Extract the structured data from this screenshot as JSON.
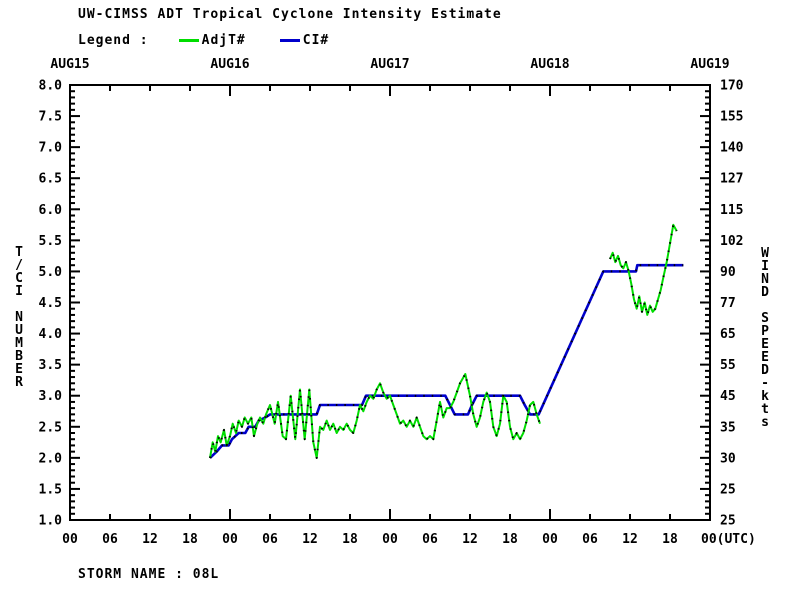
{
  "header": {
    "title": "UW-CIMSS ADT Tropical Cyclone Intensity Estimate",
    "legend_label": "Legend :",
    "adjt_label": "AdjT#",
    "ci_label": "CI#"
  },
  "footer": {
    "storm_name": "STORM NAME : 08L"
  },
  "colors": {
    "adjt_line": "#00DD00",
    "ci_line": "#0000CC",
    "axis": "#000000",
    "marker_dots": "#000000",
    "background": "#FFFFFF"
  },
  "chart_data": {
    "type": "line",
    "title": "UW-CIMSS ADT Tropical Cyclone Intensity Estimate",
    "x_axis": {
      "date_labels": [
        "AUG15",
        "AUG16",
        "AUG17",
        "AUG18",
        "AUG19"
      ],
      "hour_label_cycle": [
        "00",
        "06",
        "12",
        "18"
      ],
      "last_label": "00(UTC)",
      "hours_total": 96,
      "tick_interval_hours": 6
    },
    "y_left": {
      "label": "T/CI NUMBER",
      "min": 1.0,
      "max": 8.0,
      "major_step": 0.5,
      "minor_step": 0.1,
      "tick_labels_top_to_bottom": [
        "8.0",
        "7.5",
        "7.0",
        "6.5",
        "6.0",
        "5.5",
        "5.0",
        "4.5",
        "4.0",
        "3.5",
        "3.0",
        "2.5",
        "2.0",
        "1.5",
        "1.0"
      ]
    },
    "y_right": {
      "label": "WIND SPEED-kts",
      "tick_labels_top_to_bottom": [
        "170",
        "155",
        "140",
        "127",
        "115",
        "102",
        "90",
        "77",
        "65",
        "55",
        "45",
        "35",
        "30",
        "25",
        "25"
      ]
    },
    "grid": false,
    "legend_position": "top-left",
    "series": [
      {
        "name": "CI#",
        "color_key": "ci_line",
        "segments": [
          [
            [
              21.0,
              2.0
            ],
            [
              21.5,
              2.05
            ],
            [
              22.0,
              2.1
            ],
            [
              22.8,
              2.2
            ],
            [
              23.8,
              2.2
            ],
            [
              24.3,
              2.3
            ],
            [
              25.3,
              2.4
            ],
            [
              26.3,
              2.4
            ],
            [
              26.8,
              2.5
            ],
            [
              27.8,
              2.5
            ],
            [
              28.3,
              2.6
            ],
            [
              29.3,
              2.65
            ],
            [
              30.0,
              2.7
            ],
            [
              37.0,
              2.7
            ],
            [
              37.5,
              2.85
            ],
            [
              43.8,
              2.85
            ],
            [
              44.4,
              3.0
            ],
            [
              56.3,
              3.0
            ],
            [
              57.0,
              2.85
            ],
            [
              57.7,
              2.7
            ],
            [
              59.7,
              2.7
            ],
            [
              60.3,
              2.85
            ],
            [
              61.0,
              3.0
            ],
            [
              67.5,
              3.0
            ],
            [
              68.2,
              2.85
            ],
            [
              69.0,
              2.7
            ],
            [
              70.3,
              2.7
            ],
            [
              80.0,
              5.0
            ],
            [
              84.9,
              5.0
            ],
            [
              85.1,
              5.1
            ],
            [
              92.0,
              5.1
            ]
          ]
        ]
      },
      {
        "name": "AdjT#",
        "color_key": "adjt_line",
        "segments": [
          [
            [
              21.0,
              2.0
            ],
            [
              21.4,
              2.25
            ],
            [
              21.8,
              2.1
            ],
            [
              22.2,
              2.35
            ],
            [
              22.6,
              2.25
            ],
            [
              23.1,
              2.45
            ],
            [
              23.5,
              2.2
            ],
            [
              24.0,
              2.35
            ],
            [
              24.4,
              2.55
            ],
            [
              24.9,
              2.4
            ],
            [
              25.3,
              2.6
            ],
            [
              25.8,
              2.5
            ],
            [
              26.2,
              2.65
            ],
            [
              26.7,
              2.55
            ],
            [
              27.2,
              2.65
            ],
            [
              27.6,
              2.35
            ],
            [
              28.1,
              2.55
            ],
            [
              28.5,
              2.65
            ],
            [
              29.0,
              2.55
            ],
            [
              29.4,
              2.7
            ],
            [
              30.0,
              2.85
            ],
            [
              30.7,
              2.55
            ],
            [
              31.2,
              2.9
            ],
            [
              31.9,
              2.35
            ],
            [
              32.4,
              2.3
            ],
            [
              33.1,
              3.0
            ],
            [
              33.8,
              2.3
            ],
            [
              34.5,
              3.1
            ],
            [
              35.2,
              2.3
            ],
            [
              35.9,
              3.1
            ],
            [
              36.5,
              2.25
            ],
            [
              37.0,
              2.0
            ],
            [
              37.5,
              2.5
            ],
            [
              38.0,
              2.45
            ],
            [
              38.5,
              2.6
            ],
            [
              39.0,
              2.45
            ],
            [
              39.5,
              2.55
            ],
            [
              40.0,
              2.4
            ],
            [
              40.5,
              2.5
            ],
            [
              41.0,
              2.45
            ],
            [
              41.5,
              2.55
            ],
            [
              42.0,
              2.45
            ],
            [
              42.5,
              2.4
            ],
            [
              43.0,
              2.6
            ],
            [
              43.5,
              2.85
            ],
            [
              44.0,
              2.75
            ],
            [
              44.5,
              2.9
            ],
            [
              45.0,
              3.0
            ],
            [
              45.5,
              2.95
            ],
            [
              46.0,
              3.1
            ],
            [
              46.5,
              3.2
            ],
            [
              47.0,
              3.05
            ],
            [
              47.5,
              2.95
            ],
            [
              48.0,
              3.0
            ],
            [
              48.5,
              2.85
            ],
            [
              49.0,
              2.7
            ],
            [
              49.5,
              2.55
            ],
            [
              50.0,
              2.6
            ],
            [
              50.5,
              2.5
            ],
            [
              51.0,
              2.6
            ],
            [
              51.5,
              2.5
            ],
            [
              52.0,
              2.65
            ],
            [
              52.5,
              2.5
            ],
            [
              53.0,
              2.35
            ],
            [
              53.5,
              2.3
            ],
            [
              54.0,
              2.35
            ],
            [
              54.5,
              2.3
            ],
            [
              55.0,
              2.6
            ],
            [
              55.5,
              2.9
            ],
            [
              56.0,
              2.65
            ],
            [
              56.5,
              2.8
            ],
            [
              57.0,
              2.8
            ],
            [
              57.5,
              2.9
            ],
            [
              58.0,
              3.05
            ],
            [
              58.5,
              3.2
            ],
            [
              59.3,
              3.35
            ],
            [
              60.0,
              3.0
            ],
            [
              60.5,
              2.7
            ],
            [
              61.0,
              2.5
            ],
            [
              61.5,
              2.65
            ],
            [
              62.0,
              2.9
            ],
            [
              62.5,
              3.05
            ],
            [
              63.0,
              2.9
            ],
            [
              63.5,
              2.5
            ],
            [
              64.0,
              2.35
            ],
            [
              64.5,
              2.55
            ],
            [
              65.0,
              3.0
            ],
            [
              65.5,
              2.9
            ],
            [
              66.0,
              2.5
            ],
            [
              66.5,
              2.3
            ],
            [
              67.0,
              2.4
            ],
            [
              67.5,
              2.3
            ],
            [
              68.0,
              2.4
            ],
            [
              68.5,
              2.6
            ],
            [
              69.0,
              2.85
            ],
            [
              69.5,
              2.9
            ],
            [
              70.0,
              2.7
            ],
            [
              70.5,
              2.55
            ]
          ],
          [
            [
              81.0,
              5.2
            ],
            [
              81.4,
              5.3
            ],
            [
              81.8,
              5.15
            ],
            [
              82.2,
              5.25
            ],
            [
              82.6,
              5.1
            ],
            [
              83.0,
              5.05
            ],
            [
              83.4,
              5.15
            ],
            [
              83.8,
              5.0
            ],
            [
              84.2,
              4.8
            ],
            [
              84.6,
              4.55
            ],
            [
              85.0,
              4.4
            ],
            [
              85.4,
              4.6
            ],
            [
              85.8,
              4.35
            ],
            [
              86.2,
              4.5
            ],
            [
              86.6,
              4.3
            ],
            [
              87.0,
              4.45
            ],
            [
              87.4,
              4.35
            ],
            [
              87.8,
              4.4
            ],
            [
              88.2,
              4.55
            ],
            [
              88.6,
              4.7
            ],
            [
              89.0,
              4.9
            ],
            [
              89.5,
              5.15
            ],
            [
              90.0,
              5.45
            ],
            [
              90.5,
              5.75
            ],
            [
              91.0,
              5.65
            ]
          ]
        ]
      }
    ]
  }
}
